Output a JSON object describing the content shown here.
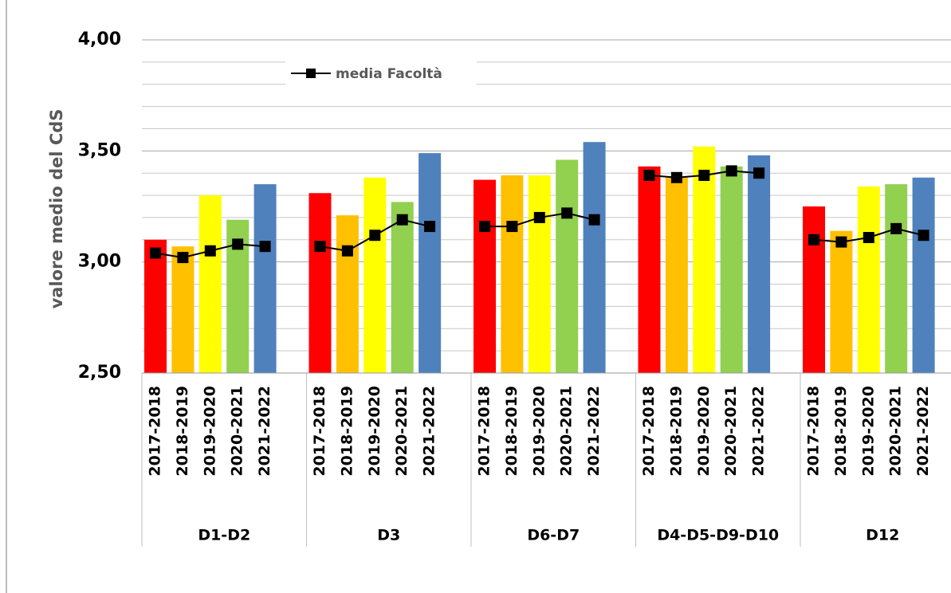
{
  "chart_data": {
    "type": "bar",
    "y_label": "valore medio del CdS",
    "groups": [
      "D1-D2",
      "D3",
      "D6-D7",
      "D4-D5-D9-D10",
      "D12"
    ],
    "series": [
      {
        "name": "2017-2018",
        "color": "#ff0000",
        "values": [
          3.1,
          3.31,
          3.37,
          3.43,
          3.25
        ]
      },
      {
        "name": "2018-2019",
        "color": "#ffc000",
        "values": [
          3.07,
          3.21,
          3.39,
          3.38,
          3.14
        ]
      },
      {
        "name": "2019-2020",
        "color": "#ffff00",
        "values": [
          3.3,
          3.38,
          3.39,
          3.52,
          3.34
        ]
      },
      {
        "name": "2020-2021",
        "color": "#92d050",
        "values": [
          3.19,
          3.27,
          3.46,
          3.43,
          3.35
        ]
      },
      {
        "name": "2021-2022",
        "color": "#4f81bd",
        "values": [
          3.35,
          3.49,
          3.54,
          3.48,
          3.38
        ]
      }
    ],
    "line": {
      "type": "line",
      "name": "media Facoltà",
      "color": "#000000",
      "values": [
        [
          3.04,
          3.02,
          3.05,
          3.08,
          3.07
        ],
        [
          3.07,
          3.05,
          3.12,
          3.19,
          3.16
        ],
        [
          3.16,
          3.16,
          3.2,
          3.22,
          3.19
        ],
        [
          3.39,
          3.38,
          3.39,
          3.41,
          3.4
        ],
        [
          3.1,
          3.09,
          3.11,
          3.15,
          3.12
        ]
      ]
    },
    "ylim": [
      2.5,
      4.0
    ],
    "yticks": [
      {
        "value": 2.5,
        "label": "2,50"
      },
      {
        "value": 3.0,
        "label": "3,00"
      },
      {
        "value": 3.5,
        "label": "3,50"
      },
      {
        "value": 4.0,
        "label": "4,00"
      }
    ],
    "ygrid": [
      2.6,
      2.7,
      2.8,
      2.9,
      3.1,
      3.2,
      3.3,
      3.4,
      3.6,
      3.7,
      3.8,
      3.9
    ],
    "legend": "top-left"
  }
}
